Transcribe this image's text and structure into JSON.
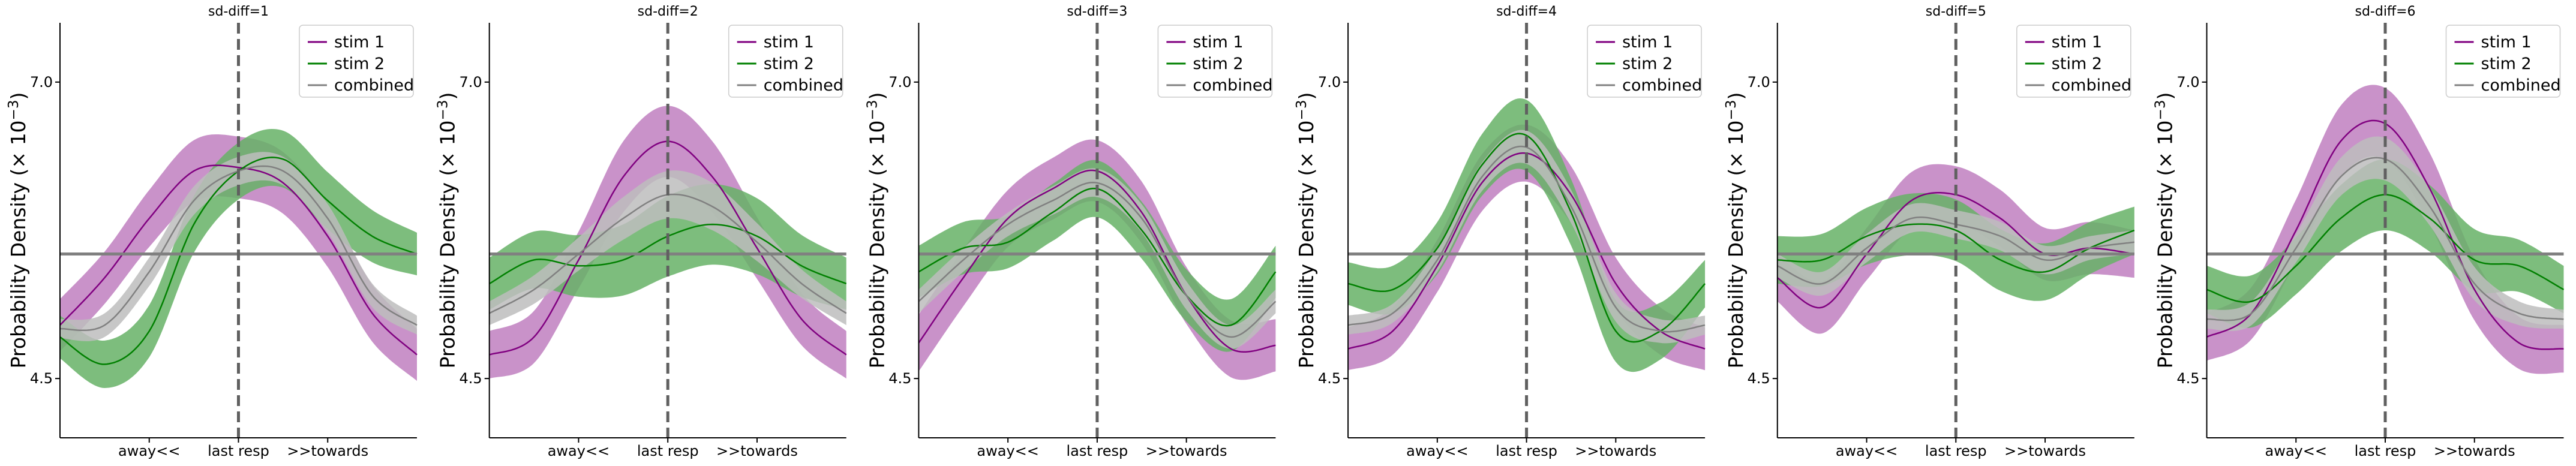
{
  "figure": {
    "ylabel": "Probability Density (× 10⁻³)",
    "ylabel_prefix": "Probability Density (× 10",
    "ylabel_exp": "−3",
    "ylabel_suffix": ")"
  },
  "chart_data": [
    {
      "type": "line",
      "title": "sd-diff=1",
      "xlabel": "",
      "ylabel": "Probability Density (× 10⁻³)",
      "xticks": [
        "away<<",
        "last resp",
        ">>towards"
      ],
      "yticks": [
        "4.5",
        "7.0"
      ],
      "ylim": [
        4.0,
        7.5
      ],
      "reference_hline": 5.55,
      "reference_vline": "last resp",
      "legend": {
        "placement": "top-right",
        "entries": [
          "stim 1",
          "stim 2",
          "combined"
        ]
      },
      "x": [
        -1.0,
        -0.75,
        -0.5,
        -0.25,
        0.0,
        0.25,
        0.5,
        0.75,
        1.0
      ],
      "series": [
        {
          "name": "stim 1",
          "color": "#800080",
          "band_color": "#bf7fbf",
          "values": [
            4.95,
            5.35,
            5.85,
            6.25,
            6.28,
            6.15,
            5.7,
            5.05,
            4.7
          ],
          "band": [
            0.22,
            0.22,
            0.24,
            0.26,
            0.26,
            0.26,
            0.26,
            0.24,
            0.22
          ]
        },
        {
          "name": "stim 2",
          "color": "#008000",
          "band_color": "#66b266",
          "values": [
            4.85,
            4.62,
            4.9,
            5.8,
            6.25,
            6.35,
            6.0,
            5.7,
            5.55
          ],
          "band": [
            0.18,
            0.2,
            0.22,
            0.24,
            0.24,
            0.24,
            0.24,
            0.22,
            0.18
          ]
        },
        {
          "name": "combined",
          "color": "#808080",
          "band_color": "#bdbdbd",
          "values": [
            4.92,
            4.95,
            5.4,
            6.0,
            6.25,
            6.25,
            5.85,
            5.2,
            4.95
          ],
          "band": [
            0.08,
            0.1,
            0.12,
            0.12,
            0.12,
            0.12,
            0.12,
            0.1,
            0.08
          ]
        }
      ]
    },
    {
      "type": "line",
      "title": "sd-diff=2",
      "xlabel": "",
      "ylabel": "Probability Density (× 10⁻³)",
      "xticks": [
        "away<<",
        "last resp",
        ">>towards"
      ],
      "yticks": [
        "4.5",
        "7.0"
      ],
      "ylim": [
        4.0,
        7.5
      ],
      "reference_hline": 5.55,
      "reference_vline": "last resp",
      "legend": {
        "placement": "top-right",
        "entries": [
          "stim 1",
          "stim 2",
          "combined"
        ]
      },
      "x": [
        -1.0,
        -0.75,
        -0.5,
        -0.25,
        0.0,
        0.25,
        0.5,
        0.75,
        1.0
      ],
      "series": [
        {
          "name": "stim 1",
          "color": "#800080",
          "band_color": "#bf7fbf",
          "values": [
            4.7,
            4.85,
            5.5,
            6.2,
            6.5,
            6.2,
            5.6,
            5.0,
            4.7
          ],
          "band": [
            0.2,
            0.22,
            0.24,
            0.3,
            0.3,
            0.3,
            0.26,
            0.22,
            0.2
          ]
        },
        {
          "name": "stim 2",
          "color": "#008000",
          "band_color": "#66b266",
          "values": [
            5.3,
            5.5,
            5.45,
            5.5,
            5.7,
            5.8,
            5.7,
            5.45,
            5.3
          ],
          "band": [
            0.22,
            0.24,
            0.26,
            0.3,
            0.34,
            0.34,
            0.32,
            0.26,
            0.22
          ]
        },
        {
          "name": "combined",
          "color": "#808080",
          "band_color": "#bdbdbd",
          "values": [
            5.05,
            5.25,
            5.55,
            5.85,
            6.05,
            5.95,
            5.65,
            5.3,
            5.05
          ],
          "band": [
            0.1,
            0.12,
            0.14,
            0.18,
            0.2,
            0.2,
            0.16,
            0.12,
            0.1
          ]
        }
      ]
    },
    {
      "type": "line",
      "title": "sd-diff=3",
      "xlabel": "",
      "ylabel": "Probability Density (× 10⁻³)",
      "xticks": [
        "away<<",
        "last resp",
        ">>towards"
      ],
      "yticks": [
        "4.5",
        "7.0"
      ],
      "ylim": [
        4.0,
        7.5
      ],
      "reference_hline": 5.55,
      "reference_vline": "last resp",
      "legend": {
        "placement": "top-right",
        "entries": [
          "stim 1",
          "stim 2",
          "combined"
        ]
      },
      "x": [
        -1.0,
        -0.75,
        -0.5,
        -0.25,
        0.0,
        0.25,
        0.5,
        0.75,
        1.0
      ],
      "series": [
        {
          "name": "stim 1",
          "color": "#800080",
          "band_color": "#bf7fbf",
          "values": [
            4.8,
            5.35,
            5.85,
            6.1,
            6.25,
            5.9,
            5.2,
            4.75,
            4.78
          ],
          "band": [
            0.24,
            0.24,
            0.24,
            0.26,
            0.26,
            0.26,
            0.24,
            0.24,
            0.22
          ]
        },
        {
          "name": "stim 2",
          "color": "#008000",
          "band_color": "#66b266",
          "values": [
            5.4,
            5.6,
            5.65,
            5.9,
            6.1,
            5.75,
            5.2,
            4.95,
            5.4
          ],
          "band": [
            0.22,
            0.22,
            0.22,
            0.24,
            0.24,
            0.24,
            0.22,
            0.22,
            0.22
          ]
        },
        {
          "name": "combined",
          "color": "#808080",
          "band_color": "#bdbdbd",
          "values": [
            5.15,
            5.5,
            5.8,
            6.0,
            6.15,
            5.85,
            5.2,
            4.85,
            5.15
          ],
          "band": [
            0.1,
            0.1,
            0.1,
            0.12,
            0.12,
            0.12,
            0.12,
            0.1,
            0.1
          ]
        }
      ]
    },
    {
      "type": "line",
      "title": "sd-diff=4",
      "xlabel": "",
      "ylabel": "Probability Density (× 10⁻³)",
      "xticks": [
        "away<<",
        "last resp",
        ">>towards"
      ],
      "yticks": [
        "4.5",
        "7.0"
      ],
      "ylim": [
        4.0,
        7.5
      ],
      "reference_hline": 5.55,
      "reference_vline": "last resp",
      "legend": {
        "placement": "top-right",
        "entries": [
          "stim 1",
          "stim 2",
          "combined"
        ]
      },
      "x": [
        -1.0,
        -0.75,
        -0.5,
        -0.25,
        0.0,
        0.25,
        0.5,
        0.75,
        1.0
      ],
      "series": [
        {
          "name": "stim 1",
          "color": "#800080",
          "band_color": "#bf7fbf",
          "values": [
            4.75,
            4.9,
            5.45,
            6.15,
            6.4,
            6.05,
            5.3,
            4.9,
            4.75
          ],
          "band": [
            0.18,
            0.2,
            0.22,
            0.24,
            0.24,
            0.24,
            0.22,
            0.2,
            0.18
          ]
        },
        {
          "name": "stim 2",
          "color": "#008000",
          "band_color": "#66b266",
          "values": [
            5.3,
            5.25,
            5.6,
            6.3,
            6.55,
            5.9,
            4.9,
            4.9,
            5.3
          ],
          "band": [
            0.18,
            0.2,
            0.22,
            0.26,
            0.3,
            0.28,
            0.26,
            0.24,
            0.2
          ]
        },
        {
          "name": "combined",
          "color": "#808080",
          "band_color": "#bdbdbd",
          "values": [
            4.95,
            5.05,
            5.5,
            6.2,
            6.45,
            5.95,
            5.1,
            4.9,
            4.95
          ],
          "band": [
            0.08,
            0.08,
            0.1,
            0.12,
            0.14,
            0.14,
            0.12,
            0.1,
            0.08
          ]
        }
      ]
    },
    {
      "type": "line",
      "title": "sd-diff=5",
      "xlabel": "",
      "ylabel": "Probability Density (× 10⁻³)",
      "xticks": [
        "away<<",
        "last resp",
        ">>towards"
      ],
      "yticks": [
        "4.5",
        "7.0"
      ],
      "ylim": [
        4.0,
        7.5
      ],
      "reference_hline": 5.55,
      "reference_vline": "last resp",
      "legend": {
        "placement": "top-right",
        "entries": [
          "stim 1",
          "stim 2",
          "combined"
        ]
      },
      "x": [
        -1.0,
        -0.75,
        -0.5,
        -0.25,
        0.0,
        0.25,
        0.5,
        0.75,
        1.0
      ],
      "series": [
        {
          "name": "stim 1",
          "color": "#800080",
          "band_color": "#bf7fbf",
          "values": [
            5.35,
            5.1,
            5.55,
            6.0,
            6.05,
            5.85,
            5.55,
            5.6,
            5.55
          ],
          "band": [
            0.2,
            0.22,
            0.22,
            0.24,
            0.24,
            0.24,
            0.22,
            0.22,
            0.2
          ]
        },
        {
          "name": "stim 2",
          "color": "#008000",
          "band_color": "#66b266",
          "values": [
            5.5,
            5.5,
            5.7,
            5.8,
            5.75,
            5.5,
            5.4,
            5.6,
            5.75
          ],
          "band": [
            0.2,
            0.22,
            0.24,
            0.26,
            0.26,
            0.26,
            0.24,
            0.22,
            0.2
          ]
        },
        {
          "name": "combined",
          "color": "#808080",
          "band_color": "#bdbdbd",
          "values": [
            5.45,
            5.3,
            5.6,
            5.85,
            5.8,
            5.7,
            5.5,
            5.6,
            5.65
          ],
          "band": [
            0.1,
            0.1,
            0.12,
            0.12,
            0.12,
            0.12,
            0.12,
            0.1,
            0.1
          ]
        }
      ]
    },
    {
      "type": "line",
      "title": "sd-diff=6",
      "xlabel": "",
      "ylabel": "Probability Density (× 10⁻³)",
      "xticks": [
        "away<<",
        "last resp",
        ">>towards"
      ],
      "yticks": [
        "4.5",
        "7.0"
      ],
      "ylim": [
        4.0,
        7.5
      ],
      "reference_hline": 5.55,
      "reference_vline": "last resp",
      "legend": {
        "placement": "top-right",
        "entries": [
          "stim 1",
          "stim 2",
          "combined"
        ]
      },
      "x": [
        -1.0,
        -0.75,
        -0.5,
        -0.25,
        0.0,
        0.25,
        0.5,
        0.75,
        1.0
      ],
      "series": [
        {
          "name": "stim 1",
          "color": "#800080",
          "band_color": "#bf7fbf",
          "values": [
            4.85,
            5.05,
            5.75,
            6.5,
            6.65,
            6.1,
            5.25,
            4.8,
            4.75
          ],
          "band": [
            0.2,
            0.22,
            0.26,
            0.3,
            0.3,
            0.3,
            0.26,
            0.22,
            0.2
          ]
        },
        {
          "name": "stim 2",
          "color": "#008000",
          "band_color": "#66b266",
          "values": [
            5.25,
            5.15,
            5.45,
            5.85,
            6.05,
            5.85,
            5.5,
            5.45,
            5.25
          ],
          "band": [
            0.2,
            0.22,
            0.24,
            0.28,
            0.3,
            0.28,
            0.26,
            0.22,
            0.2
          ]
        },
        {
          "name": "combined",
          "color": "#808080",
          "band_color": "#bdbdbd",
          "values": [
            5.0,
            5.05,
            5.6,
            6.2,
            6.35,
            5.95,
            5.3,
            5.05,
            5.0
          ],
          "band": [
            0.08,
            0.1,
            0.12,
            0.16,
            0.18,
            0.16,
            0.14,
            0.1,
            0.08
          ]
        }
      ]
    }
  ]
}
